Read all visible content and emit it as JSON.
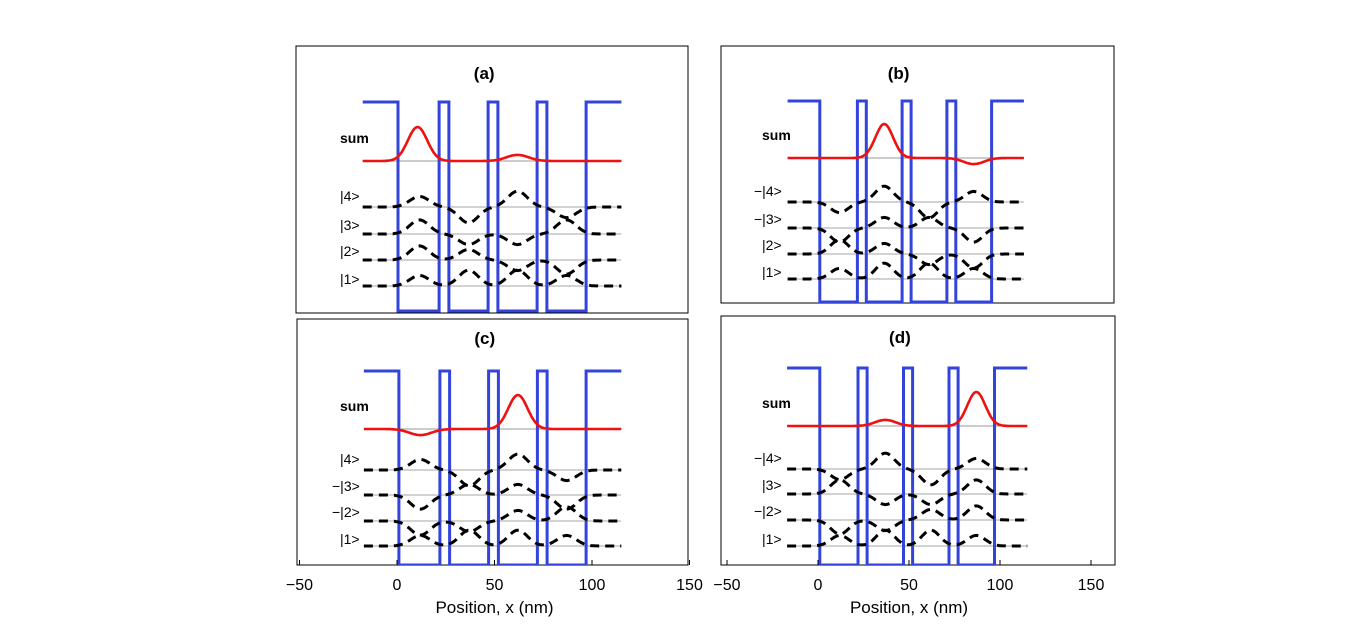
{
  "chart_data": [
    {
      "type": "line",
      "panel_label": "(a)",
      "xlim": [
        -50,
        150
      ],
      "sum_label": "sum",
      "state_labels": [
        "|4>",
        "|3>",
        "|2>",
        "|1>"
      ],
      "potential": {
        "name": "potential",
        "color": "#3344dd",
        "x": [
          -17,
          1,
          1,
          22,
          22,
          27,
          27,
          47,
          47,
          52,
          52,
          72,
          72,
          77,
          77,
          97,
          97,
          115
        ],
        "level": [
          "high",
          "high",
          "low",
          "low",
          "high",
          "high",
          "low",
          "low",
          "high",
          "high",
          "low",
          "low",
          "high",
          "high",
          "low",
          "low",
          "high",
          "high"
        ]
      },
      "sum_wave": {
        "name": "sum",
        "color": "#ee1111",
        "peaks": [
          {
            "center": 11,
            "width": 7,
            "amplitude": 1.0
          },
          {
            "center": 62,
            "width": 8,
            "amplitude": 0.18
          }
        ]
      },
      "states": [
        {
          "name": "|4>",
          "humps": [
            [
              12,
              0.3
            ],
            [
              37,
              -0.45
            ],
            [
              62,
              0.45
            ],
            [
              87,
              -0.3
            ]
          ]
        },
        {
          "name": "|3>",
          "humps": [
            [
              12,
              0.4
            ],
            [
              37,
              -0.3
            ],
            [
              62,
              -0.3
            ],
            [
              87,
              0.4
            ]
          ]
        },
        {
          "name": "|2>",
          "humps": [
            [
              12,
              0.4
            ],
            [
              37,
              0.3
            ],
            [
              62,
              -0.3
            ],
            [
              87,
              -0.4
            ]
          ]
        },
        {
          "name": "|1>",
          "humps": [
            [
              12,
              0.3
            ],
            [
              37,
              0.45
            ],
            [
              62,
              0.45
            ],
            [
              87,
              0.3
            ]
          ]
        }
      ]
    },
    {
      "type": "line",
      "panel_label": "(b)",
      "xlim": [
        -50,
        150
      ],
      "sum_label": "sum",
      "state_labels": [
        "−|4>",
        "−|3>",
        "|2>",
        "|1>"
      ],
      "potential": {
        "name": "potential",
        "color": "#3344dd",
        "x": [
          -17,
          1,
          1,
          22,
          22,
          27,
          27,
          47,
          47,
          52,
          52,
          72,
          72,
          77,
          77,
          97,
          97,
          115
        ],
        "level": [
          "high",
          "high",
          "low",
          "low",
          "high",
          "high",
          "low",
          "low",
          "high",
          "high",
          "low",
          "low",
          "high",
          "high",
          "low",
          "low",
          "high",
          "high"
        ]
      },
      "sum_wave": {
        "name": "sum",
        "color": "#ee1111",
        "peaks": [
          {
            "center": 37,
            "width": 7,
            "amplitude": 1.0
          },
          {
            "center": 87,
            "width": 8,
            "amplitude": -0.18
          }
        ]
      },
      "states": [
        {
          "name": "−|4>",
          "humps": [
            [
              12,
              -0.3
            ],
            [
              37,
              0.45
            ],
            [
              62,
              -0.45
            ],
            [
              87,
              0.3
            ]
          ]
        },
        {
          "name": "−|3>",
          "humps": [
            [
              12,
              -0.4
            ],
            [
              37,
              0.3
            ],
            [
              62,
              0.3
            ],
            [
              87,
              -0.4
            ]
          ]
        },
        {
          "name": "|2>",
          "humps": [
            [
              12,
              0.4
            ],
            [
              37,
              0.3
            ],
            [
              62,
              -0.3
            ],
            [
              87,
              -0.4
            ]
          ]
        },
        {
          "name": "|1>",
          "humps": [
            [
              12,
              0.3
            ],
            [
              37,
              0.45
            ],
            [
              62,
              0.45
            ],
            [
              87,
              0.3
            ]
          ]
        }
      ]
    },
    {
      "type": "line",
      "panel_label": "(c)",
      "xlim": [
        -50,
        150
      ],
      "xlabel": "Position, x (nm)",
      "xticks": [
        -50,
        0,
        50,
        100,
        150
      ],
      "sum_label": "sum",
      "state_labels": [
        "|4>",
        "−|3>",
        "−|2>",
        "|1>"
      ],
      "potential": {
        "name": "potential",
        "color": "#3344dd",
        "x": [
          -17,
          1,
          1,
          22,
          22,
          27,
          27,
          47,
          47,
          52,
          52,
          72,
          72,
          77,
          77,
          97,
          97,
          115
        ],
        "level": [
          "high",
          "high",
          "low",
          "low",
          "high",
          "high",
          "low",
          "low",
          "high",
          "high",
          "low",
          "low",
          "high",
          "high",
          "low",
          "low",
          "high",
          "high"
        ]
      },
      "sum_wave": {
        "name": "sum",
        "color": "#ee1111",
        "peaks": [
          {
            "center": 62,
            "width": 7,
            "amplitude": 1.0
          },
          {
            "center": 12,
            "width": 8,
            "amplitude": -0.18
          }
        ]
      },
      "states": [
        {
          "name": "|4>",
          "humps": [
            [
              12,
              0.3
            ],
            [
              37,
              -0.45
            ],
            [
              62,
              0.45
            ],
            [
              87,
              -0.3
            ]
          ]
        },
        {
          "name": "−|3>",
          "humps": [
            [
              12,
              -0.4
            ],
            [
              37,
              0.3
            ],
            [
              62,
              0.3
            ],
            [
              87,
              -0.4
            ]
          ]
        },
        {
          "name": "−|2>",
          "humps": [
            [
              12,
              -0.4
            ],
            [
              37,
              -0.3
            ],
            [
              62,
              0.3
            ],
            [
              87,
              0.4
            ]
          ]
        },
        {
          "name": "|1>",
          "humps": [
            [
              12,
              0.3
            ],
            [
              37,
              0.45
            ],
            [
              62,
              0.45
            ],
            [
              87,
              0.3
            ]
          ]
        }
      ]
    },
    {
      "type": "line",
      "panel_label": "(d)",
      "xlim": [
        -50,
        150
      ],
      "xlabel": "Position, x (nm)",
      "xticks": [
        -50,
        0,
        50,
        100,
        150
      ],
      "sum_label": "sum",
      "state_labels": [
        "−|4>",
        "|3>",
        "−|2>",
        "|1>"
      ],
      "potential": {
        "name": "potential",
        "color": "#3344dd",
        "x": [
          -17,
          1,
          1,
          22,
          22,
          27,
          27,
          47,
          47,
          52,
          52,
          72,
          72,
          77,
          77,
          97,
          97,
          115
        ],
        "level": [
          "high",
          "high",
          "low",
          "low",
          "high",
          "high",
          "low",
          "low",
          "high",
          "high",
          "low",
          "low",
          "high",
          "high",
          "low",
          "low",
          "high",
          "high"
        ]
      },
      "sum_wave": {
        "name": "sum",
        "color": "#ee1111",
        "peaks": [
          {
            "center": 87,
            "width": 7,
            "amplitude": 1.0
          },
          {
            "center": 37,
            "width": 8,
            "amplitude": 0.18
          }
        ]
      },
      "states": [
        {
          "name": "−|4>",
          "humps": [
            [
              12,
              -0.3
            ],
            [
              37,
              0.45
            ],
            [
              62,
              -0.45
            ],
            [
              87,
              0.3
            ]
          ]
        },
        {
          "name": "|3>",
          "humps": [
            [
              12,
              0.4
            ],
            [
              37,
              -0.3
            ],
            [
              62,
              -0.3
            ],
            [
              87,
              0.4
            ]
          ]
        },
        {
          "name": "−|2>",
          "humps": [
            [
              12,
              -0.4
            ],
            [
              37,
              -0.3
            ],
            [
              62,
              0.3
            ],
            [
              87,
              0.4
            ]
          ]
        },
        {
          "name": "|1>",
          "humps": [
            [
              12,
              0.3
            ],
            [
              37,
              0.45
            ],
            [
              62,
              0.45
            ],
            [
              87,
              0.3
            ]
          ]
        }
      ]
    }
  ]
}
